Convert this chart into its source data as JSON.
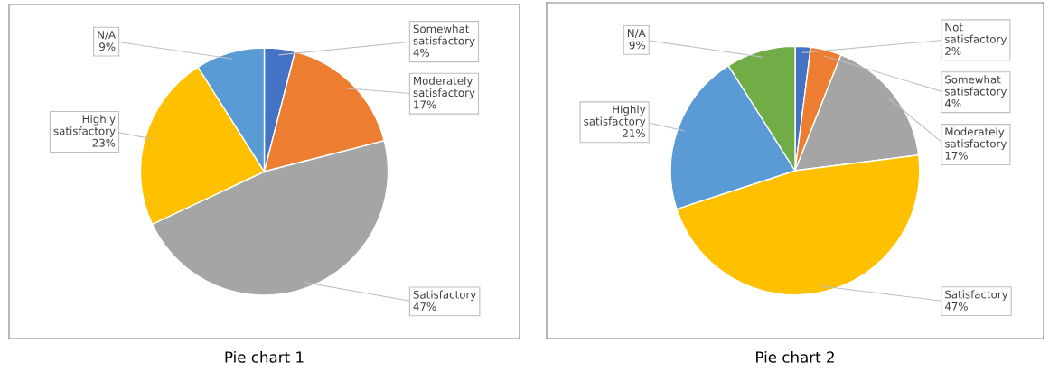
{
  "chart_data": [
    {
      "type": "pie",
      "title": "Pie chart 1",
      "categories": [
        "Somewhat satisfactory",
        "Moderately satisfactory",
        "Satisfactory",
        "Highly satisfactory",
        "N/A"
      ],
      "values": [
        4,
        17,
        47,
        23,
        9
      ],
      "colors": [
        "#4472c4",
        "#ed7d31",
        "#a5a5a5",
        "#ffc000",
        "#5b9bd5"
      ],
      "value_labels": [
        "4%",
        "17%",
        "47%",
        "23%",
        "9%"
      ]
    },
    {
      "type": "pie",
      "title": "Pie chart 2",
      "categories": [
        "Not satisfactory",
        "Somewhat satisfactory",
        "Moderately satisfactory",
        "Satisfactory",
        "Highly satisfactory",
        "N/A"
      ],
      "values": [
        2,
        4,
        17,
        47,
        21,
        9
      ],
      "colors": [
        "#4472c4",
        "#ed7d31",
        "#a5a5a5",
        "#ffc000",
        "#5b9bd5",
        "#70ad47"
      ],
      "value_labels": [
        "2%",
        "4%",
        "17%",
        "47%",
        "21%",
        "9%"
      ]
    }
  ]
}
